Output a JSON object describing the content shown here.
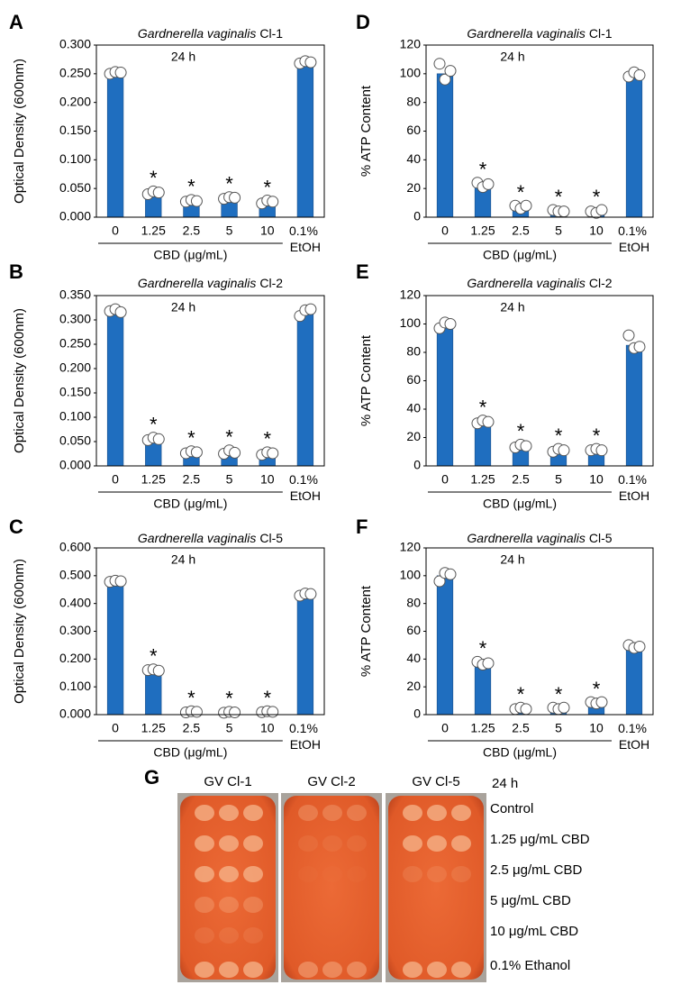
{
  "chart_data": [
    {
      "type": "bar",
      "panel": "A",
      "title_italic": "Gardnerella vaginalis",
      "title": "Cl-1",
      "annotation": "24 h",
      "ylabel": "Optical Density (600nm)",
      "xlabel": "CBD (μg/mL)",
      "categories": [
        "0",
        "1.25",
        "2.5",
        "5",
        "10",
        "0.1% EtOH"
      ],
      "values": [
        0.25,
        0.04,
        0.028,
        0.033,
        0.026,
        0.268
      ],
      "points": [
        [
          0.25,
          0.253,
          0.252
        ],
        [
          0.04,
          0.045,
          0.043
        ],
        [
          0.027,
          0.03,
          0.028
        ],
        [
          0.032,
          0.035,
          0.034
        ],
        [
          0.024,
          0.029,
          0.027
        ],
        [
          0.268,
          0.272,
          0.27
        ]
      ],
      "significance": [
        null,
        "*",
        "*",
        "*",
        "*",
        null
      ],
      "color": "#1f6ebf",
      "ylim": [
        0,
        0.3
      ],
      "yticks": [
        {
          "value": 0,
          "label": "0.000"
        },
        {
          "value": 0.05,
          "label": "0.050"
        },
        {
          "value": 0.1,
          "label": "0.100"
        },
        {
          "value": 0.15,
          "label": "0.150"
        },
        {
          "value": 0.2,
          "label": "0.200"
        },
        {
          "value": 0.25,
          "label": "0.250"
        },
        {
          "value": 0.3,
          "label": "0.300"
        }
      ]
    },
    {
      "type": "bar",
      "panel": "B",
      "title_italic": "Gardnerella vaginalis",
      "title": "Cl-2",
      "annotation": "24 h",
      "ylabel": "Optical Density (600nm)",
      "xlabel": "CBD (μg/mL)",
      "categories": [
        "0",
        "1.25",
        "2.5",
        "5",
        "10",
        "0.1% EtOH"
      ],
      "values": [
        0.318,
        0.055,
        0.028,
        0.028,
        0.025,
        0.315
      ],
      "points": [
        [
          0.318,
          0.322,
          0.316
        ],
        [
          0.053,
          0.058,
          0.055
        ],
        [
          0.026,
          0.03,
          0.028
        ],
        [
          0.025,
          0.032,
          0.027
        ],
        [
          0.023,
          0.028,
          0.026
        ],
        [
          0.308,
          0.32,
          0.322
        ]
      ],
      "significance": [
        null,
        "*",
        "*",
        "*",
        "*",
        null
      ],
      "color": "#1f6ebf",
      "ylim": [
        0,
        0.35
      ],
      "yticks": [
        {
          "value": 0,
          "label": "0.000"
        },
        {
          "value": 0.05,
          "label": "0.050"
        },
        {
          "value": 0.1,
          "label": "0.100"
        },
        {
          "value": 0.15,
          "label": "0.150"
        },
        {
          "value": 0.2,
          "label": "0.200"
        },
        {
          "value": 0.25,
          "label": "0.250"
        },
        {
          "value": 0.3,
          "label": "0.300"
        },
        {
          "value": 0.35,
          "label": "0.350"
        }
      ]
    },
    {
      "type": "bar",
      "panel": "C",
      "title_italic": "Gardnerella vaginalis",
      "title": "Cl-5",
      "annotation": "24 h",
      "ylabel": "Optical Density (600nm)",
      "xlabel": "CBD (μg/mL)",
      "categories": [
        "0",
        "1.25",
        "2.5",
        "5",
        "10",
        "0.1% EtOH"
      ],
      "values": [
        0.48,
        0.16,
        0.01,
        0.008,
        0.01,
        0.432
      ],
      "points": [
        [
          0.478,
          0.482,
          0.48
        ],
        [
          0.16,
          0.163,
          0.158
        ],
        [
          0.008,
          0.012,
          0.01
        ],
        [
          0.007,
          0.01,
          0.008
        ],
        [
          0.009,
          0.012,
          0.01
        ],
        [
          0.428,
          0.436,
          0.434
        ]
      ],
      "significance": [
        null,
        "*",
        "*",
        "*",
        "*",
        null
      ],
      "color": "#1f6ebf",
      "ylim": [
        0,
        0.6
      ],
      "yticks": [
        {
          "value": 0,
          "label": "0.000"
        },
        {
          "value": 0.1,
          "label": "0.100"
        },
        {
          "value": 0.2,
          "label": "0.200"
        },
        {
          "value": 0.3,
          "label": "0.300"
        },
        {
          "value": 0.4,
          "label": "0.400"
        },
        {
          "value": 0.5,
          "label": "0.500"
        },
        {
          "value": 0.6,
          "label": "0.600"
        }
      ]
    },
    {
      "type": "bar",
      "panel": "D",
      "title_italic": "Gardnerella vaginalis",
      "title": "Cl-1",
      "annotation": "24 h",
      "ylabel": "% ATP Content",
      "xlabel": "CBD (μg/mL)",
      "categories": [
        "0",
        "1.25",
        "2.5",
        "5",
        "10",
        "0.1% EtOH"
      ],
      "values": [
        100,
        22,
        7,
        4,
        4,
        99
      ],
      "points": [
        [
          107,
          96,
          102
        ],
        [
          24,
          21,
          23
        ],
        [
          8,
          6,
          8
        ],
        [
          5,
          4,
          4
        ],
        [
          4,
          3,
          5
        ],
        [
          98,
          101,
          99
        ]
      ],
      "significance": [
        null,
        "*",
        "*",
        "*",
        "*",
        null
      ],
      "color": "#1f6ebf",
      "ylim": [
        0,
        120
      ],
      "yticks": [
        0,
        20,
        40,
        60,
        80,
        100,
        120
      ]
    },
    {
      "type": "bar",
      "panel": "E",
      "title_italic": "Gardnerella vaginalis",
      "title": "Cl-2",
      "annotation": "24 h",
      "ylabel": "% ATP Content",
      "xlabel": "CBD (μg/mL)",
      "categories": [
        "0",
        "1.25",
        "2.5",
        "5",
        "10",
        "0.1% EtOH"
      ],
      "values": [
        99,
        31,
        14,
        11,
        11,
        85
      ],
      "points": [
        [
          97,
          101,
          100
        ],
        [
          30,
          32,
          31
        ],
        [
          13,
          15,
          14
        ],
        [
          10,
          12,
          11
        ],
        [
          11,
          12,
          11
        ],
        [
          92,
          83,
          84
        ]
      ],
      "significance": [
        null,
        "*",
        "*",
        "*",
        "*",
        null
      ],
      "color": "#1f6ebf",
      "ylim": [
        0,
        120
      ],
      "yticks": [
        0,
        20,
        40,
        60,
        80,
        100,
        120
      ]
    },
    {
      "type": "bar",
      "panel": "F",
      "title_italic": "Gardnerella vaginalis",
      "title": "Cl-5",
      "annotation": "24 h",
      "ylabel": "% ATP Content",
      "xlabel": "CBD (μg/mL)",
      "categories": [
        "0",
        "1.25",
        "2.5",
        "5",
        "10",
        "0.1% EtOH"
      ],
      "values": [
        100,
        37,
        4,
        5,
        8,
        49
      ],
      "points": [
        [
          96,
          102,
          101
        ],
        [
          38,
          36,
          37
        ],
        [
          4,
          5,
          4
        ],
        [
          5,
          4,
          5
        ],
        [
          9,
          8,
          9
        ],
        [
          50,
          48,
          49
        ]
      ],
      "significance": [
        null,
        "*",
        "*",
        "*",
        "*",
        null
      ],
      "color": "#1f6ebf",
      "ylim": [
        0,
        120
      ],
      "yticks": [
        0,
        20,
        40,
        60,
        80,
        100,
        120
      ]
    }
  ],
  "photo_panel": {
    "panel": "G",
    "plates": [
      "GV Cl-1",
      "GV Cl-2",
      "GV Cl-5"
    ],
    "time": "24 h",
    "rows": [
      "Control",
      "1.25 μg/mL CBD",
      "2.5 μg/mL CBD",
      "5 μg/mL CBD",
      "10 μg/mL CBD",
      "0.1% Ethanol"
    ]
  }
}
